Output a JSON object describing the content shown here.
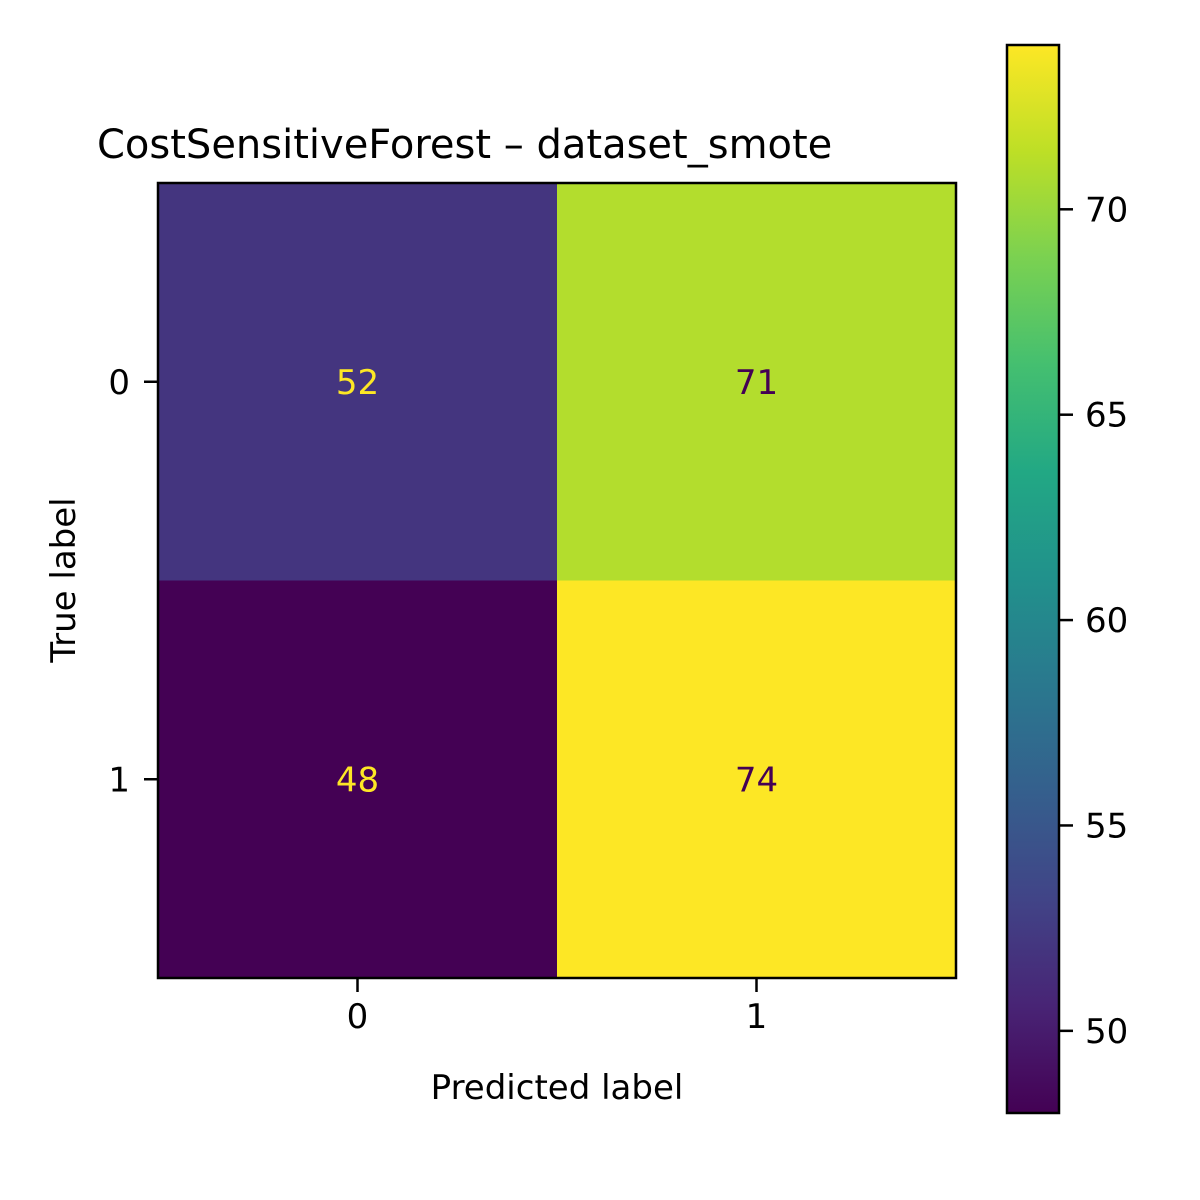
{
  "chart_data": {
    "type": "heatmap",
    "title": "CostSensitiveForest – dataset_smote",
    "xlabel": "Predicted label",
    "ylabel": "True label",
    "x_categories": [
      "0",
      "1"
    ],
    "y_categories": [
      "0",
      "1"
    ],
    "matrix": [
      [
        52,
        71
      ],
      [
        48,
        74
      ]
    ],
    "colormap": "viridis",
    "colorbar": {
      "min": 48,
      "max": 74,
      "ticks": [
        50,
        55,
        60,
        65,
        70
      ]
    },
    "grid": false
  }
}
